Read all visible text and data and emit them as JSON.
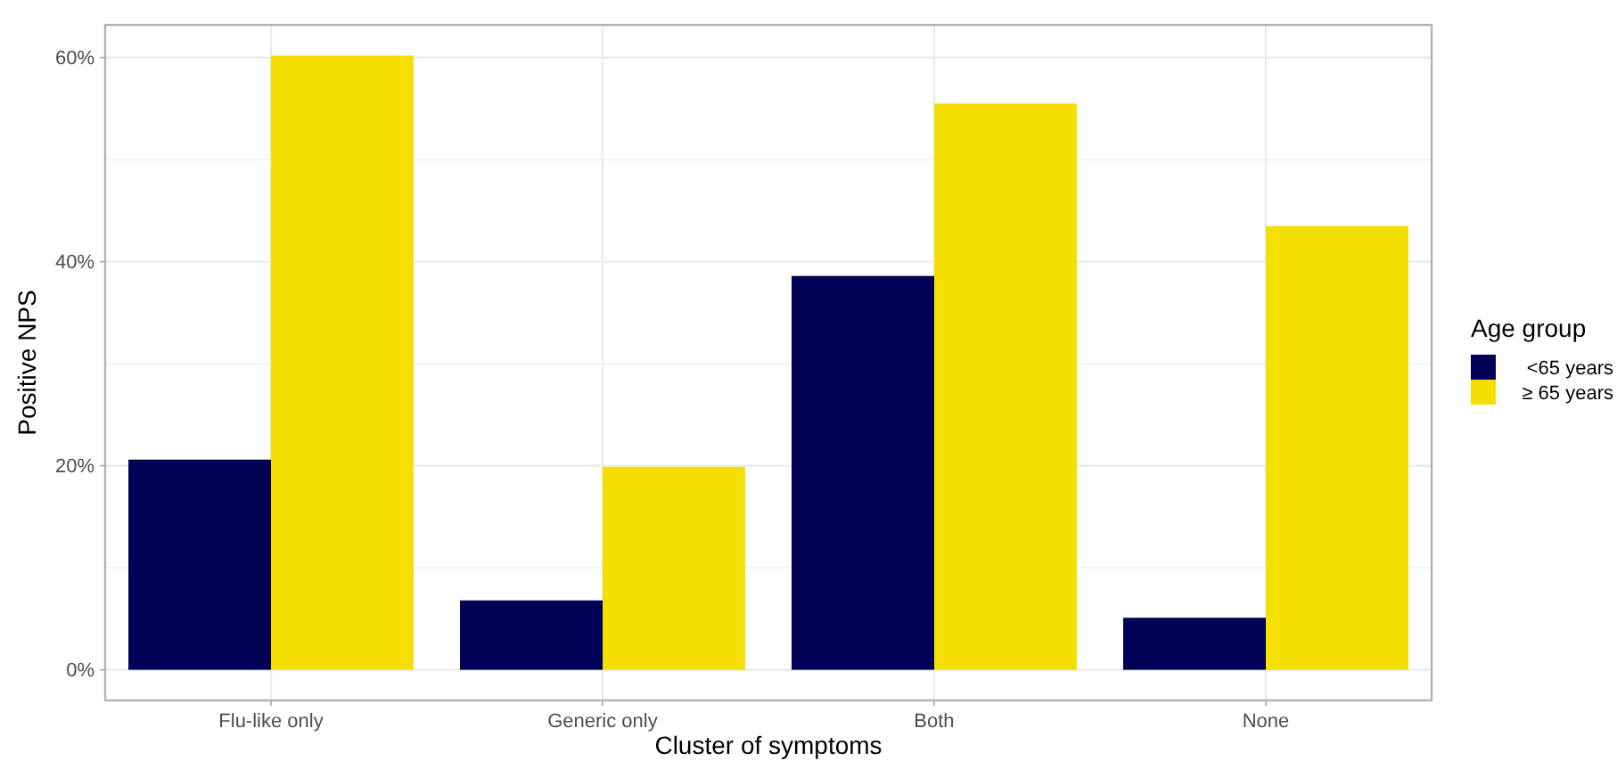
{
  "chart_data": {
    "type": "bar",
    "xlabel": "Cluster of symptoms",
    "ylabel": "Positive NPS",
    "legend_title": "Age group",
    "categories": [
      "Flu-like only",
      "Generic only",
      "Both",
      "None"
    ],
    "series": [
      {
        "name": "<65 years",
        "color": "#000055",
        "values": [
          20.6,
          6.8,
          38.6,
          5.1
        ]
      },
      {
        "name": "≥ 65 years",
        "color": "#f5df00",
        "values": [
          60.2,
          19.9,
          55.5,
          43.5
        ]
      }
    ],
    "ylim": [
      -3,
      63.2
    ],
    "yticks": [
      {
        "value": 0,
        "label": "0%"
      },
      {
        "value": 10,
        "label": null
      },
      {
        "value": 20,
        "label": "20%"
      },
      {
        "value": 30,
        "label": null
      },
      {
        "value": 40,
        "label": "40%"
      },
      {
        "value": 50,
        "label": null
      },
      {
        "value": 60,
        "label": "60%"
      }
    ],
    "grid": true,
    "legend": "right"
  }
}
